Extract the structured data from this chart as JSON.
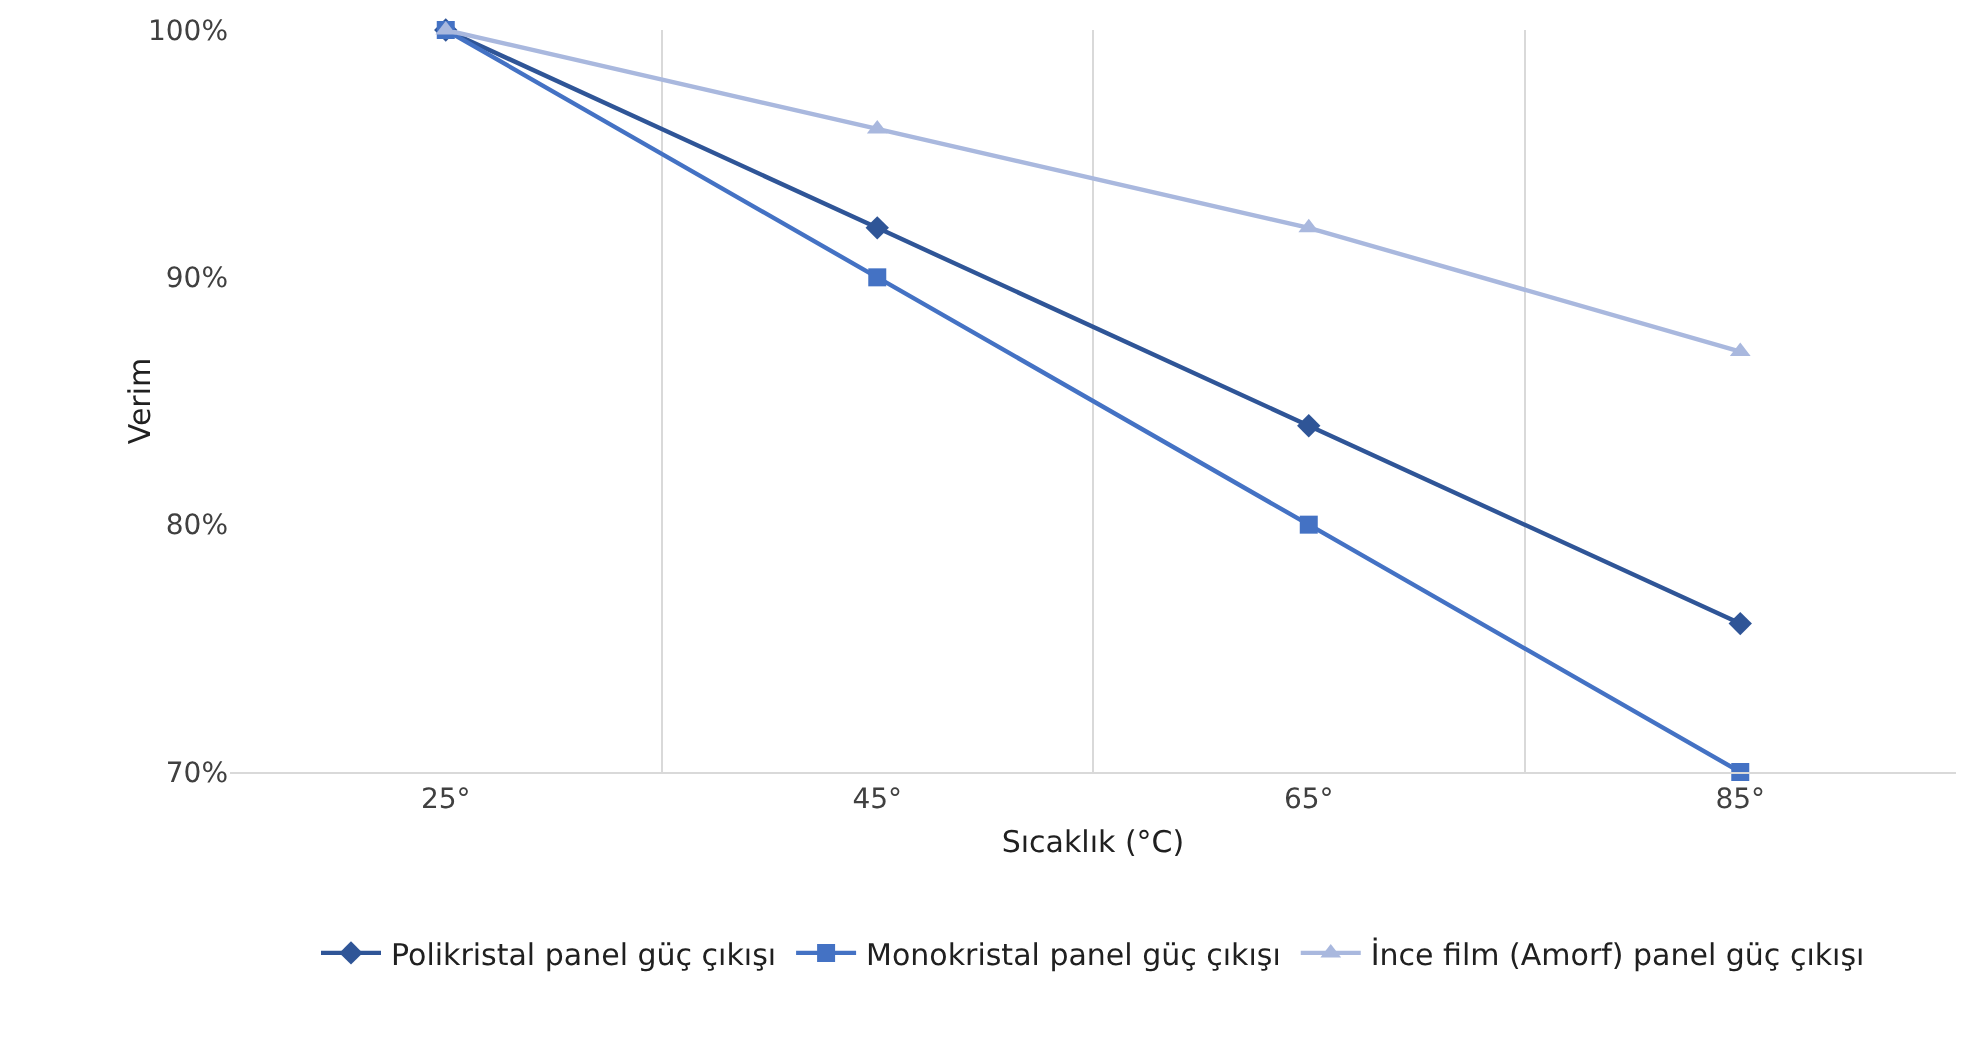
{
  "chart_data": {
    "type": "line",
    "xlabel": "Sıcaklık (°C)",
    "ylabel": "Verim",
    "categories": [
      "25°",
      "45°",
      "65°",
      "85°"
    ],
    "series": [
      {
        "name": "Polikristal panel güç çıkışı",
        "color": "#2f5597",
        "marker": "diamond",
        "values": [
          100,
          92,
          84,
          76
        ]
      },
      {
        "name": "Monokristal panel güç çıkışı",
        "color": "#4472c4",
        "marker": "square",
        "values": [
          100,
          90,
          80,
          70
        ]
      },
      {
        "name": "İnce film (Amorf) panel güç çıkışı",
        "color": "#a9b8de",
        "marker": "triangle",
        "values": [
          100,
          96,
          92,
          87
        ]
      }
    ],
    "ylim": [
      70,
      100
    ],
    "yticks": [
      {
        "value": 70,
        "label": "70%"
      },
      {
        "value": 80,
        "label": "80%"
      },
      {
        "value": 90,
        "label": "90%"
      },
      {
        "value": 100,
        "label": "100%"
      }
    ],
    "grid": "x",
    "legend": "bottom",
    "line_style": "solid"
  }
}
